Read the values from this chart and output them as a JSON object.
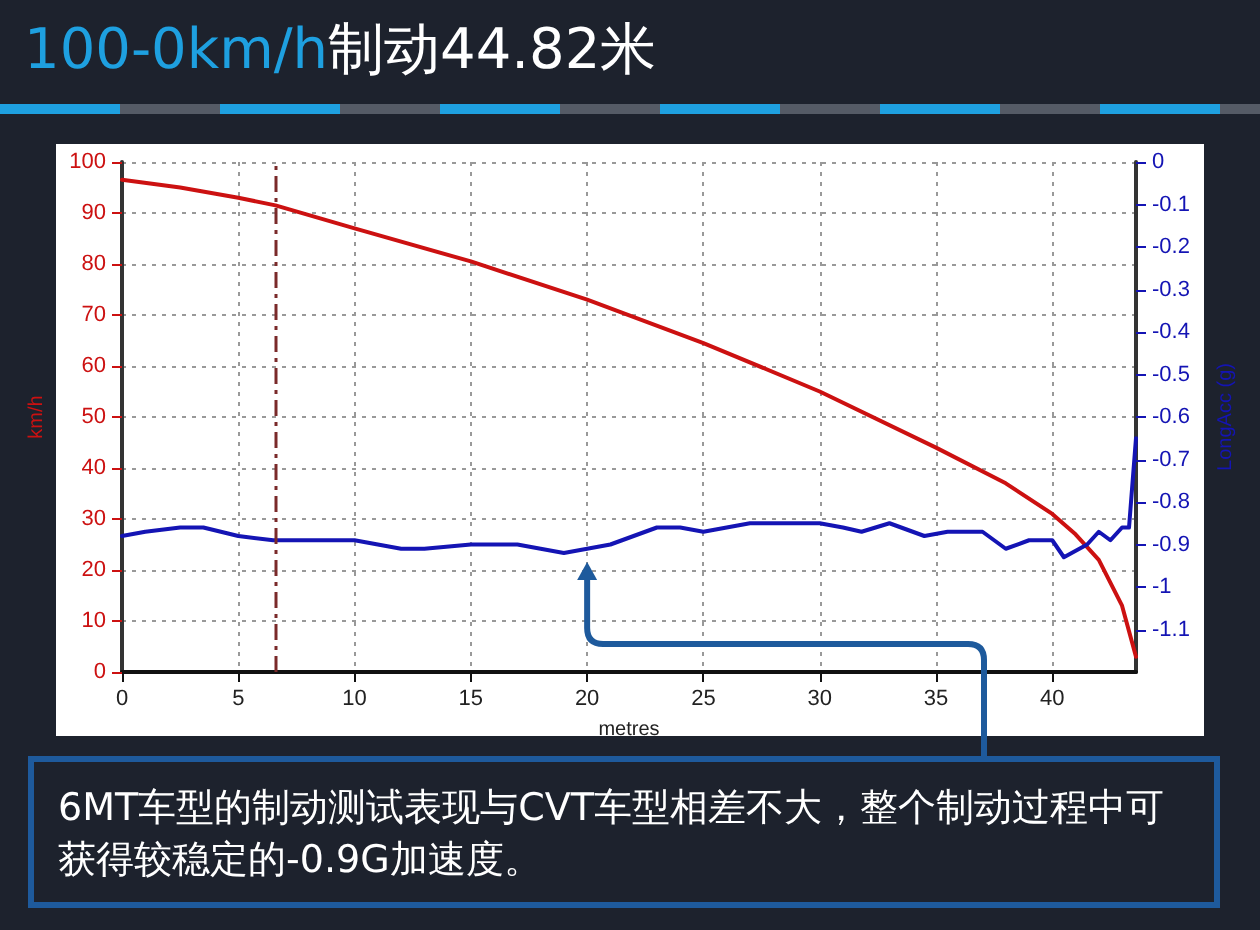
{
  "chart_data": {
    "type": "line",
    "title": "100-0km/h制动44.82米",
    "xlabel": "metres",
    "ylabel": "km/h",
    "y2label": "LongAcc (g)",
    "xlim": [
      0,
      43.6
    ],
    "xticks": [
      0,
      5,
      10,
      15,
      20,
      25,
      30,
      35,
      40
    ],
    "ylim": [
      0,
      100
    ],
    "yticks": [
      0,
      10,
      20,
      30,
      40,
      50,
      60,
      70,
      80,
      90,
      100
    ],
    "y2lim": [
      -1.2,
      0
    ],
    "y2ticks": [
      0,
      -0.1,
      -0.2,
      -0.3,
      -0.4,
      -0.5,
      -0.6,
      -0.7,
      -0.8,
      -0.9,
      -1,
      -1.1
    ],
    "series": [
      {
        "color": "#cc1111",
        "x": [
          0,
          2.5,
          5,
          6.6,
          10,
          15,
          20,
          25,
          30,
          35,
          38,
          40,
          41,
          42,
          43,
          43.6
        ],
        "values": [
          96.5,
          95,
          93,
          91.5,
          87,
          80.5,
          73,
          64.5,
          55,
          44,
          37,
          31,
          27,
          22,
          13,
          3
        ]
      },
      {
        "color": "#1414b4",
        "axis": "y2",
        "x": [
          0,
          1,
          2.5,
          3.5,
          5,
          6.5,
          8,
          10,
          12,
          13,
          15,
          17,
          18,
          19,
          20,
          21,
          22,
          23,
          24,
          25,
          26,
          27,
          28,
          29,
          30,
          31,
          31.8,
          33,
          34,
          34.5,
          35.5,
          37,
          38,
          39,
          40,
          40.5,
          41.5,
          42,
          42.5,
          43,
          43.3,
          43.6
        ],
        "values": [
          -0.88,
          -0.87,
          -0.86,
          -0.86,
          -0.88,
          -0.89,
          -0.89,
          -0.89,
          -0.91,
          -0.91,
          -0.9,
          -0.9,
          -0.91,
          -0.92,
          -0.91,
          -0.9,
          -0.88,
          -0.86,
          -0.86,
          -0.87,
          -0.86,
          -0.85,
          -0.85,
          -0.85,
          -0.85,
          -0.86,
          -0.87,
          -0.85,
          -0.87,
          -0.88,
          -0.87,
          -0.87,
          -0.91,
          -0.89,
          -0.89,
          -0.93,
          -0.9,
          -0.87,
          -0.89,
          -0.86,
          -0.86,
          -0.65
        ]
      }
    ],
    "ref_lines": [
      {
        "axis": "x",
        "value": 6.6,
        "color": "#7a2a2a",
        "line_style": "dashed"
      }
    ],
    "grid": true,
    "marker": "none",
    "line_style": "solid",
    "annotations": [
      "6MT车型的制动测试表现与CVT车型相差不大，整个制动过程中可获得较稳定的-0.9G加速度。"
    ]
  }
}
